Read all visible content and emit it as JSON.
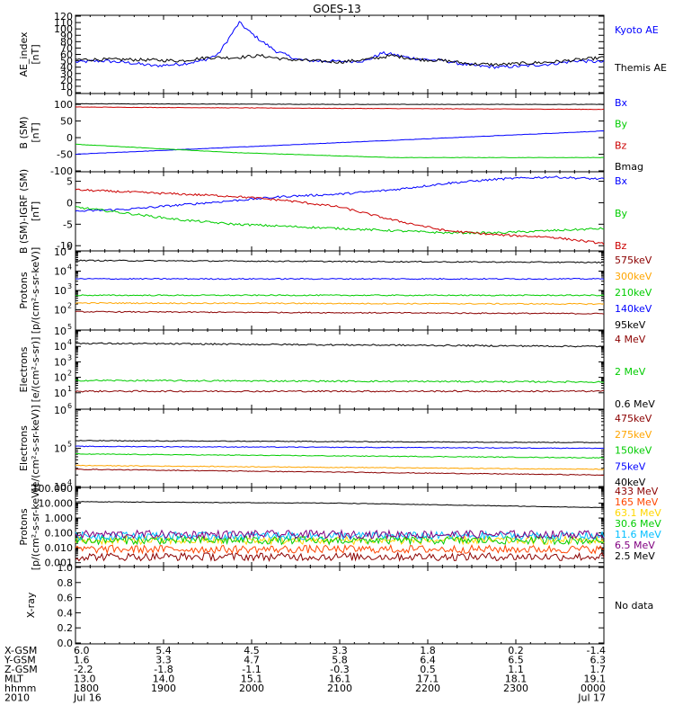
{
  "title": "GOES-13",
  "chart_data": [
    {
      "type": "line",
      "ylabel": [
        "AE_index",
        "[nT]"
      ],
      "ylim": [
        0,
        120
      ],
      "yticks": [
        "0",
        "10",
        "20",
        "30",
        "40",
        "50",
        "60",
        "70",
        "80",
        "90",
        "100",
        "110",
        "120"
      ],
      "series": [
        {
          "name": "Kyoto AE",
          "color": "#0000ff",
          "x": [
            0,
            0.05,
            0.1,
            0.15,
            0.2,
            0.24,
            0.27,
            0.29,
            0.31,
            0.33,
            0.35,
            0.38,
            0.42,
            0.45,
            0.5,
            0.55,
            0.58,
            0.6,
            0.63,
            0.66,
            0.7,
            0.73,
            0.76,
            0.8,
            0.85,
            0.9,
            0.95,
            1
          ],
          "y": [
            48,
            50,
            47,
            42,
            45,
            50,
            60,
            85,
            110,
            95,
            82,
            65,
            52,
            50,
            49,
            50,
            62,
            60,
            55,
            52,
            50,
            45,
            42,
            40,
            42,
            45,
            50,
            48
          ]
        },
        {
          "name": "Themis AE",
          "color": "#000000",
          "x": [
            0,
            0.1,
            0.2,
            0.25,
            0.3,
            0.35,
            0.4,
            0.5,
            0.55,
            0.6,
            0.65,
            0.7,
            0.75,
            0.8,
            0.9,
            1
          ],
          "y": [
            52,
            52,
            50,
            55,
            55,
            58,
            52,
            48,
            52,
            58,
            52,
            50,
            45,
            44,
            48,
            55
          ]
        }
      ]
    },
    {
      "type": "line",
      "ylabel": [
        "B (SM)",
        "[nT]"
      ],
      "ylim": [
        -100,
        130
      ],
      "yticks": [
        "-100",
        "-50",
        "0",
        "50",
        "100"
      ],
      "yticks_v": [
        -100,
        -50,
        0,
        50,
        100
      ],
      "series": [
        {
          "name": "Bx",
          "color": "#0000ff",
          "x": [
            0,
            1
          ],
          "y": [
            -50,
            20
          ]
        },
        {
          "name": "By",
          "color": "#00cc00",
          "x": [
            0,
            0.3,
            0.6,
            1
          ],
          "y": [
            -20,
            -45,
            -60,
            -60
          ]
        },
        {
          "name": "Bz",
          "color": "#cc0000",
          "x": [
            0,
            0.5,
            1
          ],
          "y": [
            92,
            88,
            85
          ]
        },
        {
          "name": "Bmag",
          "color": "#000000",
          "x": [
            0,
            0.5,
            1
          ],
          "y": [
            102,
            100,
            100
          ]
        }
      ]
    },
    {
      "type": "line",
      "ylabel": [
        "B (SM)-IGRF (SM)",
        "[nT]"
      ],
      "ylim": [
        -11,
        7
      ],
      "yticks": [
        "-10",
        "-5",
        "0",
        "5"
      ],
      "yticks_v": [
        -10,
        -5,
        0,
        5
      ],
      "series": [
        {
          "name": "Bx",
          "color": "#0000ff",
          "x": [
            0,
            0.1,
            0.2,
            0.3,
            0.4,
            0.5,
            0.6,
            0.7,
            0.8,
            0.9,
            1
          ],
          "y": [
            -2,
            -1.5,
            -0.5,
            0.5,
            1.5,
            2,
            3,
            4.5,
            5.5,
            6,
            5.5
          ]
        },
        {
          "name": "By",
          "color": "#00cc00",
          "x": [
            0,
            0.1,
            0.2,
            0.3,
            0.4,
            0.5,
            0.6,
            0.7,
            0.8,
            0.9,
            1
          ],
          "y": [
            -1,
            -2.5,
            -4,
            -5,
            -5.5,
            -6,
            -6.5,
            -7,
            -7,
            -6.5,
            -6
          ]
        },
        {
          "name": "Bz",
          "color": "#cc0000",
          "x": [
            0,
            0.1,
            0.2,
            0.3,
            0.4,
            0.5,
            0.6,
            0.7,
            0.8,
            0.9,
            1
          ],
          "y": [
            3,
            2.5,
            2,
            1.5,
            0.5,
            -1,
            -4,
            -6.5,
            -7.5,
            -8,
            -9.5
          ]
        }
      ]
    },
    {
      "type": "line",
      "yscale": "log",
      "ylabel": [
        "Protons",
        "[p/(cm²-s-sr-keV)]"
      ],
      "ylim": [
        1,
        5
      ],
      "ytick_exps": [
        2,
        3,
        4,
        5
      ],
      "series": [
        {
          "name": "575keV",
          "color": "#8b0000",
          "x": [
            0,
            1
          ],
          "y": [
            1.9,
            1.8
          ]
        },
        {
          "name": "300keV",
          "color": "#ffa500",
          "x": [
            0,
            1
          ],
          "y": [
            2.35,
            2.3
          ]
        },
        {
          "name": "210keV",
          "color": "#00cc00",
          "x": [
            0,
            1
          ],
          "y": [
            2.75,
            2.75
          ]
        },
        {
          "name": "140keV",
          "color": "#0000ff",
          "x": [
            0,
            1
          ],
          "y": [
            3.6,
            3.6
          ]
        },
        {
          "name": "95keV",
          "color": "#000000",
          "x": [
            0,
            1
          ],
          "y": [
            4.55,
            4.45
          ]
        }
      ]
    },
    {
      "type": "line",
      "yscale": "log",
      "ylabel": [
        "Electrons",
        "[e/(cm²-s-sr)]"
      ],
      "ylim": [
        0,
        5
      ],
      "ytick_exps": [
        1,
        2,
        3,
        4,
        5
      ],
      "series": [
        {
          "name": "4 MeV",
          "color": "#8b0000",
          "x": [
            0,
            1
          ],
          "y": [
            1.1,
            1.1
          ]
        },
        {
          "name": "2 MeV",
          "color": "#00cc00",
          "x": [
            0,
            1
          ],
          "y": [
            1.8,
            1.7
          ]
        },
        {
          "name": "0.6 MeV",
          "color": "#000000",
          "x": [
            0,
            1
          ],
          "y": [
            4.2,
            4.0
          ]
        }
      ]
    },
    {
      "type": "line",
      "yscale": "log",
      "ylabel": [
        "Electrons",
        "[e/(cm²-s-sr-keV)]"
      ],
      "ylim": [
        4,
        6
      ],
      "ytick_exps": [
        4,
        5,
        6
      ],
      "series": [
        {
          "name": "475keV",
          "color": "#8b0000",
          "x": [
            0,
            1
          ],
          "y": [
            4.45,
            4.3
          ]
        },
        {
          "name": "275keV",
          "color": "#ffa500",
          "x": [
            0,
            1
          ],
          "y": [
            4.55,
            4.45
          ]
        },
        {
          "name": "150keV",
          "color": "#00cc00",
          "x": [
            0,
            1
          ],
          "y": [
            4.85,
            4.75
          ]
        },
        {
          "name": "75keV",
          "color": "#0000ff",
          "x": [
            0,
            1
          ],
          "y": [
            5.05,
            5.0
          ]
        },
        {
          "name": "40keV",
          "color": "#000000",
          "x": [
            0,
            1
          ],
          "y": [
            5.2,
            5.15
          ]
        }
      ]
    },
    {
      "type": "line",
      "yscale": "log",
      "ylabel": [
        "Protons",
        "[p/(cm²-s-sr-keV)]"
      ],
      "ylim": [
        -3.2,
        2
      ],
      "yticks": [
        "0.001",
        "0.010",
        "0.100",
        "1.000",
        "10.000",
        "100.000"
      ],
      "ytick_exps": [
        -3,
        -2,
        -1,
        0,
        1,
        2
      ],
      "series": [
        {
          "name": "433 MeV",
          "color": "#8b0000",
          "x": [
            0,
            1
          ],
          "y": [
            -2.6,
            -2.6
          ]
        },
        {
          "name": "165 MeV",
          "color": "#ff4500",
          "x": [
            0,
            1
          ],
          "y": [
            -2.1,
            -2.1
          ]
        },
        {
          "name": "63.1 MeV",
          "color": "#ffd700",
          "x": [
            0,
            1
          ],
          "y": [
            -1.5,
            -1.5
          ]
        },
        {
          "name": "30.6 MeV",
          "color": "#00cc00",
          "x": [
            0,
            1
          ],
          "y": [
            -1.5,
            -1.5
          ]
        },
        {
          "name": "11.6 MeV",
          "color": "#00bfff",
          "x": [
            0,
            1
          ],
          "y": [
            -1.2,
            -1.2
          ]
        },
        {
          "name": "6.5 MeV",
          "color": "#800080",
          "x": [
            0,
            1
          ],
          "y": [
            -1.1,
            -1.1
          ]
        },
        {
          "name": "2.5 MeV",
          "color": "#000000",
          "x": [
            0,
            0.5,
            1
          ],
          "y": [
            1.1,
            1.0,
            0.7
          ]
        }
      ]
    },
    {
      "type": "line",
      "ylabel": [
        "X-ray"
      ],
      "ylim": [
        0,
        1
      ],
      "yticks": [
        "0.0",
        "0.2",
        "0.4",
        "0.6",
        "0.8",
        "1.0"
      ],
      "yticks_v": [
        0,
        0.2,
        0.4,
        0.6,
        0.8,
        1.0
      ],
      "note": "No data",
      "series": []
    }
  ],
  "xaxis": {
    "row_labels": [
      "X-GSM",
      "Y-GSM",
      "Z-GSM",
      "MLT",
      "hhmm",
      "2010"
    ],
    "columns": [
      {
        "X-GSM": "6.0",
        "Y-GSM": "1.6",
        "Z-GSM": "-2.2",
        "MLT": "13.0",
        "hhmm": "1800",
        "2010": "Jul 16"
      },
      {
        "X-GSM": "5.4",
        "Y-GSM": "3.3",
        "Z-GSM": "-1.8",
        "MLT": "14.0",
        "hhmm": "1900",
        "2010": ""
      },
      {
        "X-GSM": "4.5",
        "Y-GSM": "4.7",
        "Z-GSM": "-1.1",
        "MLT": "15.1",
        "hhmm": "2000",
        "2010": ""
      },
      {
        "X-GSM": "3.3",
        "Y-GSM": "5.8",
        "Z-GSM": "-0.3",
        "MLT": "16.1",
        "hhmm": "2100",
        "2010": ""
      },
      {
        "X-GSM": "1.8",
        "Y-GSM": "6.4",
        "Z-GSM": "0.5",
        "MLT": "17.1",
        "hhmm": "2200",
        "2010": ""
      },
      {
        "X-GSM": "0.2",
        "Y-GSM": "6.5",
        "Z-GSM": "1.1",
        "MLT": "18.1",
        "hhmm": "2300",
        "2010": ""
      },
      {
        "X-GSM": "-1.4",
        "Y-GSM": "6.3",
        "Z-GSM": "1.7",
        "MLT": "19.1",
        "hhmm": "0000",
        "2010": "Jul 17"
      }
    ]
  }
}
